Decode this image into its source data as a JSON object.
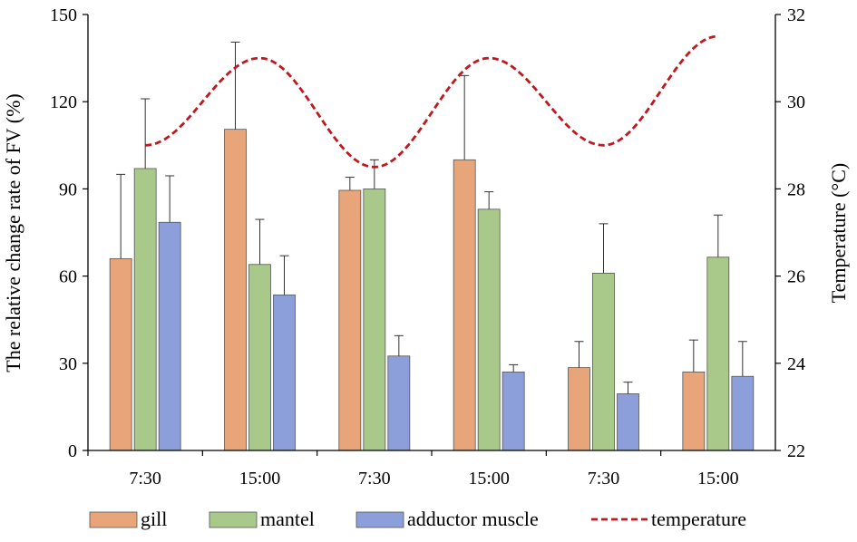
{
  "chart_data": {
    "type": "bar",
    "title": "",
    "categories": [
      "7:30",
      "15:00",
      "7:30",
      "15:00",
      "7:30",
      "15:00"
    ],
    "series": [
      {
        "name": "gill",
        "color": "#E8A57A",
        "values": [
          66,
          110.5,
          89.5,
          100,
          28.5,
          27
        ],
        "errors": [
          29,
          30,
          4.5,
          29,
          9,
          11
        ]
      },
      {
        "name": "mantel",
        "color": "#A9C98A",
        "values": [
          97,
          64,
          90,
          83,
          61,
          66.5
        ],
        "errors": [
          24,
          15.5,
          10,
          6,
          17,
          14.5
        ]
      },
      {
        "name": "adductor muscle",
        "color": "#8C9FDA",
        "values": [
          78.5,
          53.5,
          32.5,
          27,
          19.5,
          25.5
        ],
        "errors": [
          16,
          13.5,
          7,
          2.5,
          4,
          12
        ]
      }
    ],
    "line_series": {
      "name": "temperature",
      "color": "#C0181E",
      "style": "dashed",
      "axis": "right",
      "values": [
        29.0,
        31.0,
        28.5,
        31.0,
        29.0,
        31.5
      ]
    },
    "ylabel": "The relative change rate of FV (%)",
    "y2label": "Temperature (°C)",
    "ylim": [
      0,
      150
    ],
    "y2lim": [
      22,
      32
    ],
    "yticks": [
      "0",
      "30",
      "60",
      "90",
      "120",
      "150"
    ],
    "y2ticks": [
      "22",
      "24",
      "26",
      "28",
      "30",
      "32"
    ],
    "legend_position": "bottom",
    "grid": false
  }
}
